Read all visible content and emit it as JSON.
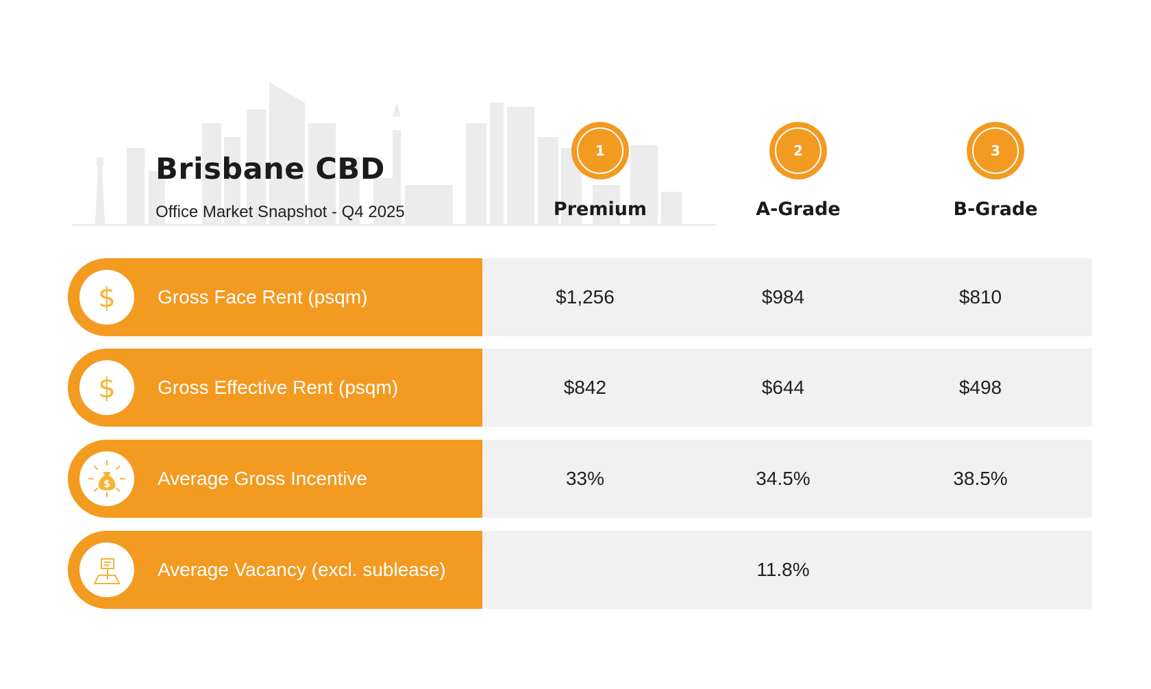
{
  "header": {
    "title": "Brisbane CBD",
    "subtitle": "Office Market Snapshot - Q4 2025"
  },
  "colors": {
    "accent": "#f39a21",
    "row_bg": "#f1f1f1",
    "skyline": "#ececec"
  },
  "columns": [
    {
      "number": "1",
      "label": "Premium"
    },
    {
      "number": "2",
      "label": "A-Grade"
    },
    {
      "number": "3",
      "label": "B-Grade"
    }
  ],
  "rows": [
    {
      "icon": "dollar-icon",
      "label": "Gross Face Rent (psqm)",
      "values": [
        "$1,256",
        "$984",
        "$810"
      ]
    },
    {
      "icon": "dollar-icon",
      "label": "Gross Effective Rent (psqm)",
      "values": [
        "$842",
        "$644",
        "$498"
      ]
    },
    {
      "icon": "money-bag-icon",
      "label": "Average Gross Incentive",
      "values": [
        "33%",
        "34.5%",
        "38.5%"
      ]
    },
    {
      "icon": "vacant-land-sign-icon",
      "label": "Average Vacancy (excl. sublease)",
      "values": [
        "",
        "11.8%",
        ""
      ]
    }
  ]
}
